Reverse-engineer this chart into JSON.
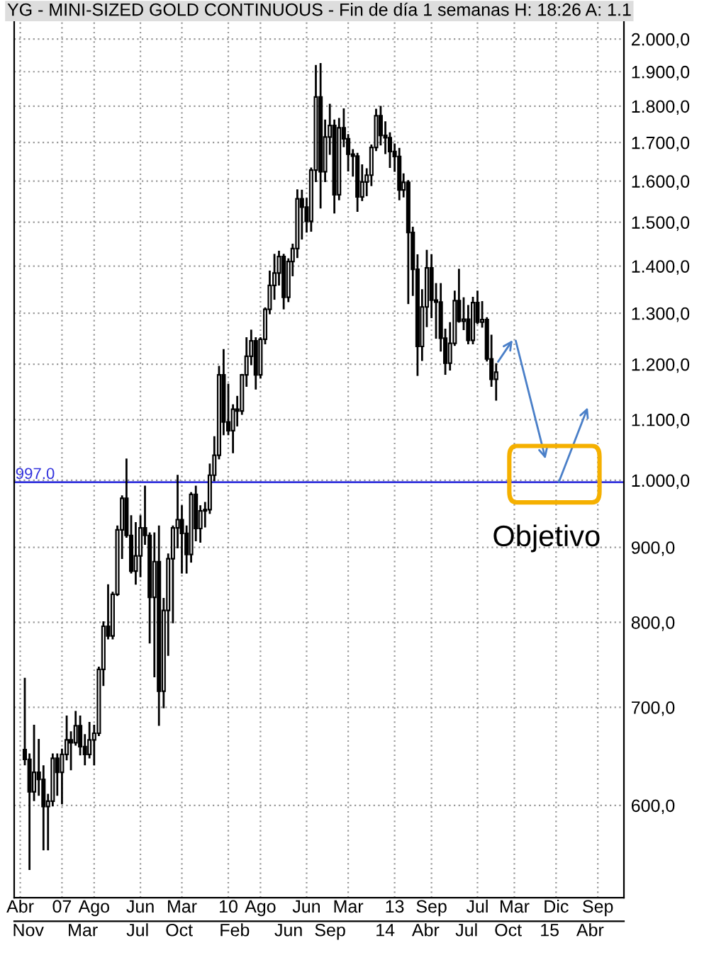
{
  "chart_data": {
    "type": "candlestick",
    "title": "YG - MINI-SIZED GOLD CONTINUOUS - Fin de día 1 semanas H: 18:26 A: 1.1",
    "x": [
      "2006-05",
      "2006-06",
      "2006-07",
      "2006-08",
      "2006-09",
      "2006-10",
      "2006-11",
      "2006-12",
      "2007-01",
      "2007-02",
      "2007-03",
      "2007-04",
      "2007-05",
      "2007-06",
      "2007-07",
      "2007-08",
      "2007-09",
      "2007-10",
      "2007-11",
      "2007-12",
      "2008-01",
      "2008-02",
      "2008-03",
      "2008-04",
      "2008-05",
      "2008-06",
      "2008-07",
      "2008-08",
      "2008-09",
      "2008-10",
      "2008-11",
      "2008-12",
      "2009-01",
      "2009-02",
      "2009-03",
      "2009-04",
      "2009-05",
      "2009-06",
      "2009-07",
      "2009-08",
      "2009-09",
      "2009-10",
      "2009-11",
      "2009-12",
      "2010-01",
      "2010-02",
      "2010-03",
      "2010-04",
      "2010-05",
      "2010-06",
      "2010-07",
      "2010-08",
      "2010-09",
      "2010-10",
      "2010-11",
      "2010-12",
      "2011-01",
      "2011-02",
      "2011-03",
      "2011-04",
      "2011-05",
      "2011-06",
      "2011-07",
      "2011-08",
      "2011-09",
      "2011-10",
      "2011-11",
      "2011-12",
      "2012-01",
      "2012-02",
      "2012-03",
      "2012-04",
      "2012-05",
      "2012-06",
      "2012-07",
      "2012-08",
      "2012-09",
      "2012-10",
      "2012-11",
      "2012-12",
      "2013-01",
      "2013-02",
      "2013-03",
      "2013-04",
      "2013-05",
      "2013-06",
      "2013-07",
      "2013-08",
      "2013-09",
      "2013-10",
      "2013-11",
      "2013-12",
      "2014-01",
      "2014-02",
      "2014-03",
      "2014-04",
      "2014-05",
      "2014-06",
      "2014-07",
      "2014-08",
      "2014-09",
      "2014-10",
      "2014-11"
    ],
    "ohlc": [
      [
        655,
        732,
        640,
        645
      ],
      [
        645,
        650,
        543,
        613
      ],
      [
        613,
        680,
        605,
        632
      ],
      [
        632,
        665,
        610,
        625
      ],
      [
        625,
        638,
        560,
        599
      ],
      [
        599,
        610,
        560,
        604
      ],
      [
        604,
        650,
        600,
        646
      ],
      [
        646,
        650,
        610,
        632
      ],
      [
        632,
        655,
        602,
        650
      ],
      [
        650,
        690,
        645,
        665
      ],
      [
        665,
        673,
        635,
        662
      ],
      [
        662,
        695,
        660,
        680
      ],
      [
        680,
        690,
        650,
        658
      ],
      [
        658,
        670,
        640,
        650
      ],
      [
        650,
        683,
        647,
        665
      ],
      [
        665,
        680,
        640,
        672
      ],
      [
        672,
        745,
        670,
        743
      ],
      [
        743,
        800,
        725,
        795
      ],
      [
        795,
        848,
        780,
        783
      ],
      [
        783,
        838,
        780,
        836
      ],
      [
        836,
        930,
        835,
        925
      ],
      [
        925,
        975,
        885,
        972
      ],
      [
        972,
        1033,
        915,
        917
      ],
      [
        917,
        945,
        865,
        867
      ],
      [
        867,
        935,
        850,
        888
      ],
      [
        888,
        945,
        860,
        928
      ],
      [
        928,
        990,
        905,
        917
      ],
      [
        917,
        920,
        775,
        832
      ],
      [
        832,
        920,
        735,
        880
      ],
      [
        880,
        930,
        681,
        718
      ],
      [
        718,
        830,
        700,
        815
      ],
      [
        815,
        890,
        760,
        884
      ],
      [
        884,
        930,
        800,
        928
      ],
      [
        928,
        1007,
        900,
        940
      ],
      [
        940,
        960,
        865,
        920
      ],
      [
        920,
        930,
        865,
        890
      ],
      [
        890,
        980,
        880,
        978
      ],
      [
        978,
        990,
        910,
        927
      ],
      [
        927,
        960,
        908,
        953
      ],
      [
        953,
        965,
        930,
        955
      ],
      [
        955,
        1025,
        950,
        1008
      ],
      [
        1008,
        1070,
        1000,
        1040
      ],
      [
        1040,
        1195,
        1035,
        1180
      ],
      [
        1180,
        1227,
        1075,
        1096
      ],
      [
        1096,
        1162,
        1075,
        1081
      ],
      [
        1081,
        1125,
        1045,
        1118
      ],
      [
        1118,
        1140,
        1090,
        1115
      ],
      [
        1115,
        1180,
        1110,
        1180
      ],
      [
        1180,
        1250,
        1160,
        1215
      ],
      [
        1215,
        1265,
        1200,
        1245
      ],
      [
        1245,
        1250,
        1155,
        1180
      ],
      [
        1180,
        1250,
        1175,
        1248
      ],
      [
        1248,
        1310,
        1240,
        1308
      ],
      [
        1308,
        1388,
        1300,
        1358
      ],
      [
        1358,
        1425,
        1330,
        1385
      ],
      [
        1385,
        1432,
        1360,
        1421
      ],
      [
        1421,
        1425,
        1310,
        1333
      ],
      [
        1333,
        1415,
        1325,
        1410
      ],
      [
        1410,
        1448,
        1380,
        1439
      ],
      [
        1439,
        1577,
        1420,
        1556
      ],
      [
        1556,
        1576,
        1462,
        1536
      ],
      [
        1536,
        1556,
        1478,
        1502
      ],
      [
        1502,
        1632,
        1480,
        1628
      ],
      [
        1628,
        1917,
        1600,
        1826
      ],
      [
        1826,
        1923,
        1535,
        1624
      ],
      [
        1624,
        1760,
        1600,
        1715
      ],
      [
        1715,
        1804,
        1670,
        1746
      ],
      [
        1746,
        1760,
        1523,
        1566
      ],
      [
        1566,
        1764,
        1555,
        1740
      ],
      [
        1740,
        1791,
        1690,
        1710
      ],
      [
        1710,
        1720,
        1627,
        1669
      ],
      [
        1669,
        1680,
        1614,
        1664
      ],
      [
        1664,
        1670,
        1527,
        1561
      ],
      [
        1561,
        1640,
        1553,
        1598
      ],
      [
        1598,
        1630,
        1565,
        1615
      ],
      [
        1615,
        1692,
        1590,
        1687
      ],
      [
        1687,
        1790,
        1680,
        1773
      ],
      [
        1773,
        1798,
        1695,
        1719
      ],
      [
        1719,
        1755,
        1672,
        1713
      ],
      [
        1713,
        1725,
        1636,
        1676
      ],
      [
        1676,
        1695,
        1626,
        1663
      ],
      [
        1663,
        1683,
        1555,
        1578
      ],
      [
        1578,
        1617,
        1562,
        1597
      ],
      [
        1597,
        1600,
        1321,
        1476
      ],
      [
        1476,
        1487,
        1338,
        1393
      ],
      [
        1393,
        1424,
        1180,
        1234
      ],
      [
        1234,
        1348,
        1208,
        1313
      ],
      [
        1313,
        1434,
        1274,
        1396
      ],
      [
        1396,
        1424,
        1292,
        1327
      ],
      [
        1327,
        1361,
        1251,
        1323
      ],
      [
        1323,
        1361,
        1226,
        1250
      ],
      [
        1250,
        1267,
        1182,
        1202
      ],
      [
        1202,
        1280,
        1190,
        1240
      ],
      [
        1240,
        1345,
        1237,
        1326
      ],
      [
        1326,
        1392,
        1283,
        1284
      ],
      [
        1284,
        1331,
        1268,
        1288
      ],
      [
        1288,
        1315,
        1240,
        1246
      ],
      [
        1246,
        1332,
        1240,
        1322
      ],
      [
        1322,
        1345,
        1280,
        1282
      ],
      [
        1282,
        1323,
        1273,
        1287
      ],
      [
        1287,
        1290,
        1207,
        1210
      ],
      [
        1210,
        1255,
        1160,
        1172
      ],
      [
        1172,
        1200,
        1135,
        1185
      ]
    ],
    "xlim": [
      "2006-02-20",
      "2017-02-20"
    ],
    "xticks": [
      {
        "value": "2006-04-01",
        "label": "Abr"
      },
      {
        "value": "2007-01-01",
        "label": "07"
      },
      {
        "value": "2007-08-01",
        "label": "Ago"
      },
      {
        "value": "2008-06-01",
        "label": "Jun"
      },
      {
        "value": "2009-03-01",
        "label": "Mar"
      },
      {
        "value": "2010-01-01",
        "label": "10"
      },
      {
        "value": "2010-08-01",
        "label": "Ago"
      },
      {
        "value": "2011-06-01",
        "label": "Jun"
      },
      {
        "value": "2012-03-01",
        "label": "Mar"
      },
      {
        "value": "2013-01-01",
        "label": "13"
      },
      {
        "value": "2013-09-01",
        "label": "Sep"
      },
      {
        "value": "2014-07-01",
        "label": "Jul"
      },
      {
        "value": "2015-03-01",
        "label": "Mar"
      },
      {
        "value": "2015-12-01",
        "label": "Dic"
      },
      {
        "value": "2016-09-01",
        "label": "Sep"
      }
    ],
    "x2lim": [
      "2011-10-01",
      "2015-06-15"
    ],
    "x2ticks": [
      {
        "value": "2011-11-01",
        "label": "Nov"
      },
      {
        "value": "2012-03-01",
        "label": "Mar"
      },
      {
        "value": "2012-07-01",
        "label": "Jul"
      },
      {
        "value": "2012-10-01",
        "label": "Oct"
      },
      {
        "value": "2013-02-01",
        "label": "Feb"
      },
      {
        "value": "2013-06-01",
        "label": "Jun"
      },
      {
        "value": "2013-09-01",
        "label": "Sep"
      },
      {
        "value": "2014-01-01",
        "label": "14"
      },
      {
        "value": "2014-04-01",
        "label": "Abr"
      },
      {
        "value": "2014-07-01",
        "label": "Jul"
      },
      {
        "value": "2014-10-01",
        "label": "Oct"
      },
      {
        "value": "2015-01-01",
        "label": "15"
      },
      {
        "value": "2015-04-01",
        "label": "Abr"
      }
    ],
    "ylim": [
      519,
      2070
    ],
    "log": "y",
    "yticks": [
      {
        "value": 600,
        "label": "600,0"
      },
      {
        "value": 700,
        "label": "700,0"
      },
      {
        "value": 800,
        "label": "800,0"
      },
      {
        "value": 900,
        "label": "900,0"
      },
      {
        "value": 1000,
        "label": "1.000,0"
      },
      {
        "value": 1100,
        "label": "1.100,0"
      },
      {
        "value": 1200,
        "label": "1.200,0"
      },
      {
        "value": 1300,
        "label": "1.300,0"
      },
      {
        "value": 1400,
        "label": "1.400,0"
      },
      {
        "value": 1500,
        "label": "1.500,0"
      },
      {
        "value": 1600,
        "label": "1.600,0"
      },
      {
        "value": 1700,
        "label": "1.700,0"
      },
      {
        "value": 1800,
        "label": "1.800,0"
      },
      {
        "value": 1900,
        "label": "1.900,0"
      },
      {
        "value": 2000,
        "label": "2.000,0"
      }
    ],
    "grid": true,
    "ref_lines": [
      {
        "axis": "y",
        "value": 997,
        "label": "997.0",
        "color": "#3333dd"
      }
    ],
    "annotations": [
      "Objetivo"
    ]
  }
}
